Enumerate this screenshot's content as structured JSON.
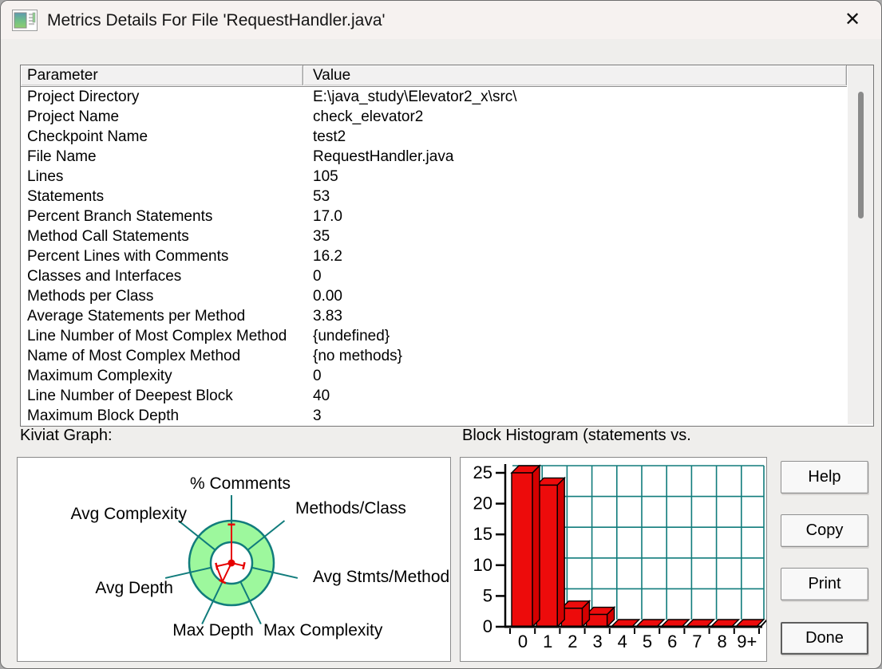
{
  "window": {
    "title": "Metrics Details For File 'RequestHandler.java'",
    "close_glyph": "✕"
  },
  "sections": {
    "kiviat_label": "Kiviat Graph:",
    "histogram_label": "Block Histogram (statements vs."
  },
  "table": {
    "columns": [
      "Parameter",
      "Value"
    ],
    "rows": [
      {
        "parameter": "Project Directory",
        "value": "E:\\java_study\\Elevator2_x\\src\\"
      },
      {
        "parameter": "Project Name",
        "value": "check_elevator2"
      },
      {
        "parameter": "Checkpoint Name",
        "value": "test2"
      },
      {
        "parameter": "File Name",
        "value": "RequestHandler.java"
      },
      {
        "parameter": "Lines",
        "value": "105"
      },
      {
        "parameter": "Statements",
        "value": "53"
      },
      {
        "parameter": "Percent Branch Statements",
        "value": "17.0"
      },
      {
        "parameter": "Method Call Statements",
        "value": "35"
      },
      {
        "parameter": "Percent Lines with Comments",
        "value": "16.2"
      },
      {
        "parameter": "Classes and Interfaces",
        "value": "0"
      },
      {
        "parameter": "Methods per Class",
        "value": "0.00"
      },
      {
        "parameter": "Average Statements per Method",
        "value": "3.83"
      },
      {
        "parameter": "Line Number of Most Complex Method",
        "value": "{undefined}"
      },
      {
        "parameter": "Name of Most Complex Method",
        "value": "{no methods}"
      },
      {
        "parameter": "Maximum Complexity",
        "value": "0"
      },
      {
        "parameter": "Line Number of Deepest Block",
        "value": "40"
      },
      {
        "parameter": "Maximum Block Depth",
        "value": "3"
      }
    ]
  },
  "buttons": [
    {
      "label": "Help"
    },
    {
      "label": "Copy"
    },
    {
      "label": "Print"
    },
    {
      "label": "Done"
    }
  ],
  "colors": {
    "teal": "#117c7c",
    "ring_green": "#9df89d",
    "radar_red": "#e60000",
    "bar_red": "#ed0b0b",
    "bar_side_red": "#d40000",
    "axis_black": "#000000"
  },
  "chart_data": [
    {
      "type": "radar",
      "title": "Kiviat Graph",
      "axes": [
        "% Comments",
        "Methods/Class",
        "Avg Stmts/Method",
        "Max Complexity",
        "Max Depth",
        "Avg Depth",
        "Avg Complexity"
      ],
      "values_fraction_of_outer_radius": [
        0.91,
        0,
        0.3,
        0,
        0.49,
        0.36,
        0
      ],
      "ring": {
        "inner_radius_fraction": 0.49,
        "note": "green annulus marks acceptable metric band"
      },
      "legend_position": "none",
      "grid": "spokes-and-rings"
    },
    {
      "type": "bar",
      "title": "Block Histogram (statements vs.",
      "categories": [
        "0",
        "1",
        "2",
        "3",
        "4",
        "5",
        "6",
        "7",
        "8",
        "9+"
      ],
      "values": [
        25,
        23,
        3,
        2,
        0,
        0,
        0,
        0,
        0,
        0
      ],
      "xlabel": "",
      "ylabel": "",
      "ylim": [
        0,
        25
      ],
      "yticks": [
        0,
        5,
        10,
        15,
        20,
        25
      ],
      "grid": true,
      "style": "3d-red-bars-teal-grid"
    }
  ]
}
